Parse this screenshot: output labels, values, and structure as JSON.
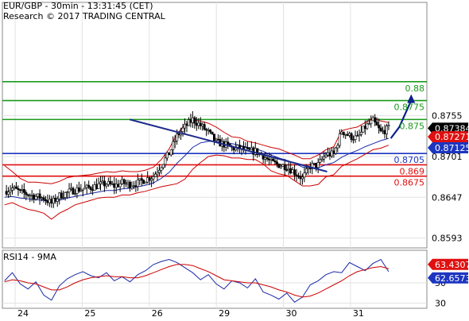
{
  "header": {
    "title": "EUR/GBP - 30min - 13:31:45 (CET)",
    "credit": "Research © 2017 TRADING CENTRAL"
  },
  "colors": {
    "candles": "#000000",
    "bollinger": "#cc0000",
    "ma_slow": "#1a2aa8",
    "trendline": "#1c2a8c",
    "forecast_arrow": "#0b1f8f",
    "resistance": "#1a9a1a",
    "pivot": "#1c35c0",
    "support": "#e01010",
    "rsi_line": "#1a2aa8",
    "rsi_signal": "#cc0000"
  },
  "chart_data": [
    {
      "type": "candlestick",
      "title": "EUR/GBP - 30min - 13:31:45 (CET)",
      "ylim": [
        0.858,
        0.8905
      ],
      "y_ticks": [
        "0.8755",
        "0.8701",
        "0.8647",
        "0.8593"
      ],
      "x_ticks": [
        "24",
        "25",
        "26",
        "29",
        "30",
        "31"
      ],
      "price_tags": [
        {
          "label": "0.87384",
          "value": 0.87384,
          "color": "#000000"
        },
        {
          "label": "0.87271",
          "value": 0.87271,
          "color": "#e01010"
        },
        {
          "label": "0.87125",
          "value": 0.87125,
          "color": "#1c35c0"
        }
      ],
      "levels": [
        {
          "label": "0.88",
          "value": 0.88,
          "kind": "resistance"
        },
        {
          "label": "0.8775",
          "value": 0.8775,
          "kind": "resistance"
        },
        {
          "label": "0.875",
          "value": 0.875,
          "kind": "resistance"
        },
        {
          "label": "0.8705",
          "value": 0.8705,
          "kind": "pivot"
        },
        {
          "label": "0.869",
          "value": 0.869,
          "kind": "support"
        },
        {
          "label": "0.8675",
          "value": 0.8675,
          "kind": "support"
        }
      ],
      "close_path": [
        0.8655,
        0.8659,
        0.8654,
        0.8651,
        0.8648,
        0.8646,
        0.8639,
        0.8649,
        0.8653,
        0.8657,
        0.8658,
        0.866,
        0.8663,
        0.8665,
        0.8662,
        0.8666,
        0.8664,
        0.8666,
        0.8671,
        0.8675,
        0.869,
        0.8705,
        0.8728,
        0.874,
        0.875,
        0.8742,
        0.8733,
        0.872,
        0.8717,
        0.8712,
        0.8712,
        0.8708,
        0.8708,
        0.8702,
        0.8693,
        0.869,
        0.8688,
        0.868,
        0.8672,
        0.8688,
        0.869,
        0.8704,
        0.8704,
        0.8735,
        0.8728,
        0.8725,
        0.874,
        0.8748,
        0.8733,
        0.8738
      ],
      "bollinger_upper": [
        0.8689,
        0.8681,
        0.8672,
        0.8667,
        0.8667,
        0.8666,
        0.8665,
        0.8668,
        0.8673,
        0.8675,
        0.8676,
        0.8677,
        0.8679,
        0.8681,
        0.868,
        0.8682,
        0.8681,
        0.8681,
        0.8683,
        0.8687,
        0.8697,
        0.8711,
        0.8731,
        0.8743,
        0.8749,
        0.8748,
        0.8745,
        0.874,
        0.8733,
        0.8727,
        0.8726,
        0.8721,
        0.8719,
        0.8716,
        0.8713,
        0.8711,
        0.8707,
        0.8703,
        0.8698,
        0.8698,
        0.8703,
        0.871,
        0.8714,
        0.8735,
        0.8738,
        0.874,
        0.8746,
        0.8752,
        0.8748,
        0.8746
      ],
      "bollinger_lower": [
        0.8637,
        0.864,
        0.8635,
        0.8631,
        0.8629,
        0.8626,
        0.8618,
        0.8626,
        0.8631,
        0.8637,
        0.864,
        0.8643,
        0.8646,
        0.8647,
        0.8647,
        0.865,
        0.865,
        0.8653,
        0.8655,
        0.8658,
        0.8661,
        0.8663,
        0.8665,
        0.8671,
        0.8684,
        0.8693,
        0.8701,
        0.8703,
        0.8702,
        0.8699,
        0.8699,
        0.8697,
        0.8697,
        0.8691,
        0.8682,
        0.8678,
        0.8676,
        0.8669,
        0.8662,
        0.8662,
        0.8664,
        0.8674,
        0.8677,
        0.8688,
        0.8693,
        0.8698,
        0.8704,
        0.871,
        0.8712,
        0.8716
      ],
      "ma_slow": [
        0.8647,
        0.8648,
        0.8646,
        0.8645,
        0.8644,
        0.8643,
        0.8641,
        0.8643,
        0.8646,
        0.8648,
        0.865,
        0.8652,
        0.8654,
        0.8656,
        0.8656,
        0.8658,
        0.8659,
        0.8661,
        0.8663,
        0.8666,
        0.8672,
        0.868,
        0.8692,
        0.8702,
        0.8713,
        0.8719,
        0.8721,
        0.8721,
        0.872,
        0.8718,
        0.8716,
        0.8713,
        0.8711,
        0.8708,
        0.8703,
        0.8699,
        0.8696,
        0.8692,
        0.8687,
        0.8686,
        0.8686,
        0.869,
        0.8693,
        0.87,
        0.8705,
        0.8709,
        0.8714,
        0.8718,
        0.8722,
        0.8725
      ],
      "trendline": [
        [
          0.3,
          0.875
        ],
        [
          0.765,
          0.8681
        ]
      ],
      "forecast": [
        0.8725,
        0.874,
        0.8775
      ]
    },
    {
      "type": "line",
      "title": "RSI14 - 9MA",
      "ylim": [
        25,
        82
      ],
      "y_ticks": [
        "50",
        "30"
      ],
      "x_ticks": [
        "24",
        "25",
        "26",
        "29",
        "30",
        "31"
      ],
      "price_tags": [
        {
          "label": "63.4307",
          "value": 63.4307,
          "color": "#e01010"
        },
        {
          "label": "62.6573",
          "value": 62.6573,
          "color": "#1c35c0"
        }
      ],
      "series": [
        {
          "values": [
            52,
            60,
            49,
            44,
            51,
            38,
            33,
            47,
            54,
            58,
            61,
            57,
            55,
            60,
            52,
            56,
            51,
            58,
            62,
            68,
            71,
            73,
            70,
            65,
            60,
            53,
            58,
            49,
            44,
            52,
            50,
            45,
            54,
            41,
            38,
            34,
            40,
            31,
            36,
            48,
            52,
            58,
            61,
            60,
            70,
            66,
            62,
            69,
            73,
            61
          ]
        },
        {
          "values": [
            51,
            53,
            52,
            50,
            49,
            46,
            43,
            43,
            46,
            50,
            53,
            55,
            56,
            57,
            56,
            56,
            55,
            55,
            57,
            60,
            63,
            66,
            68,
            68,
            67,
            64,
            61,
            57,
            53,
            52,
            51,
            50,
            50,
            48,
            46,
            43,
            41,
            38,
            36,
            37,
            40,
            44,
            48,
            52,
            57,
            61,
            63,
            65,
            66,
            64
          ]
        }
      ]
    }
  ]
}
